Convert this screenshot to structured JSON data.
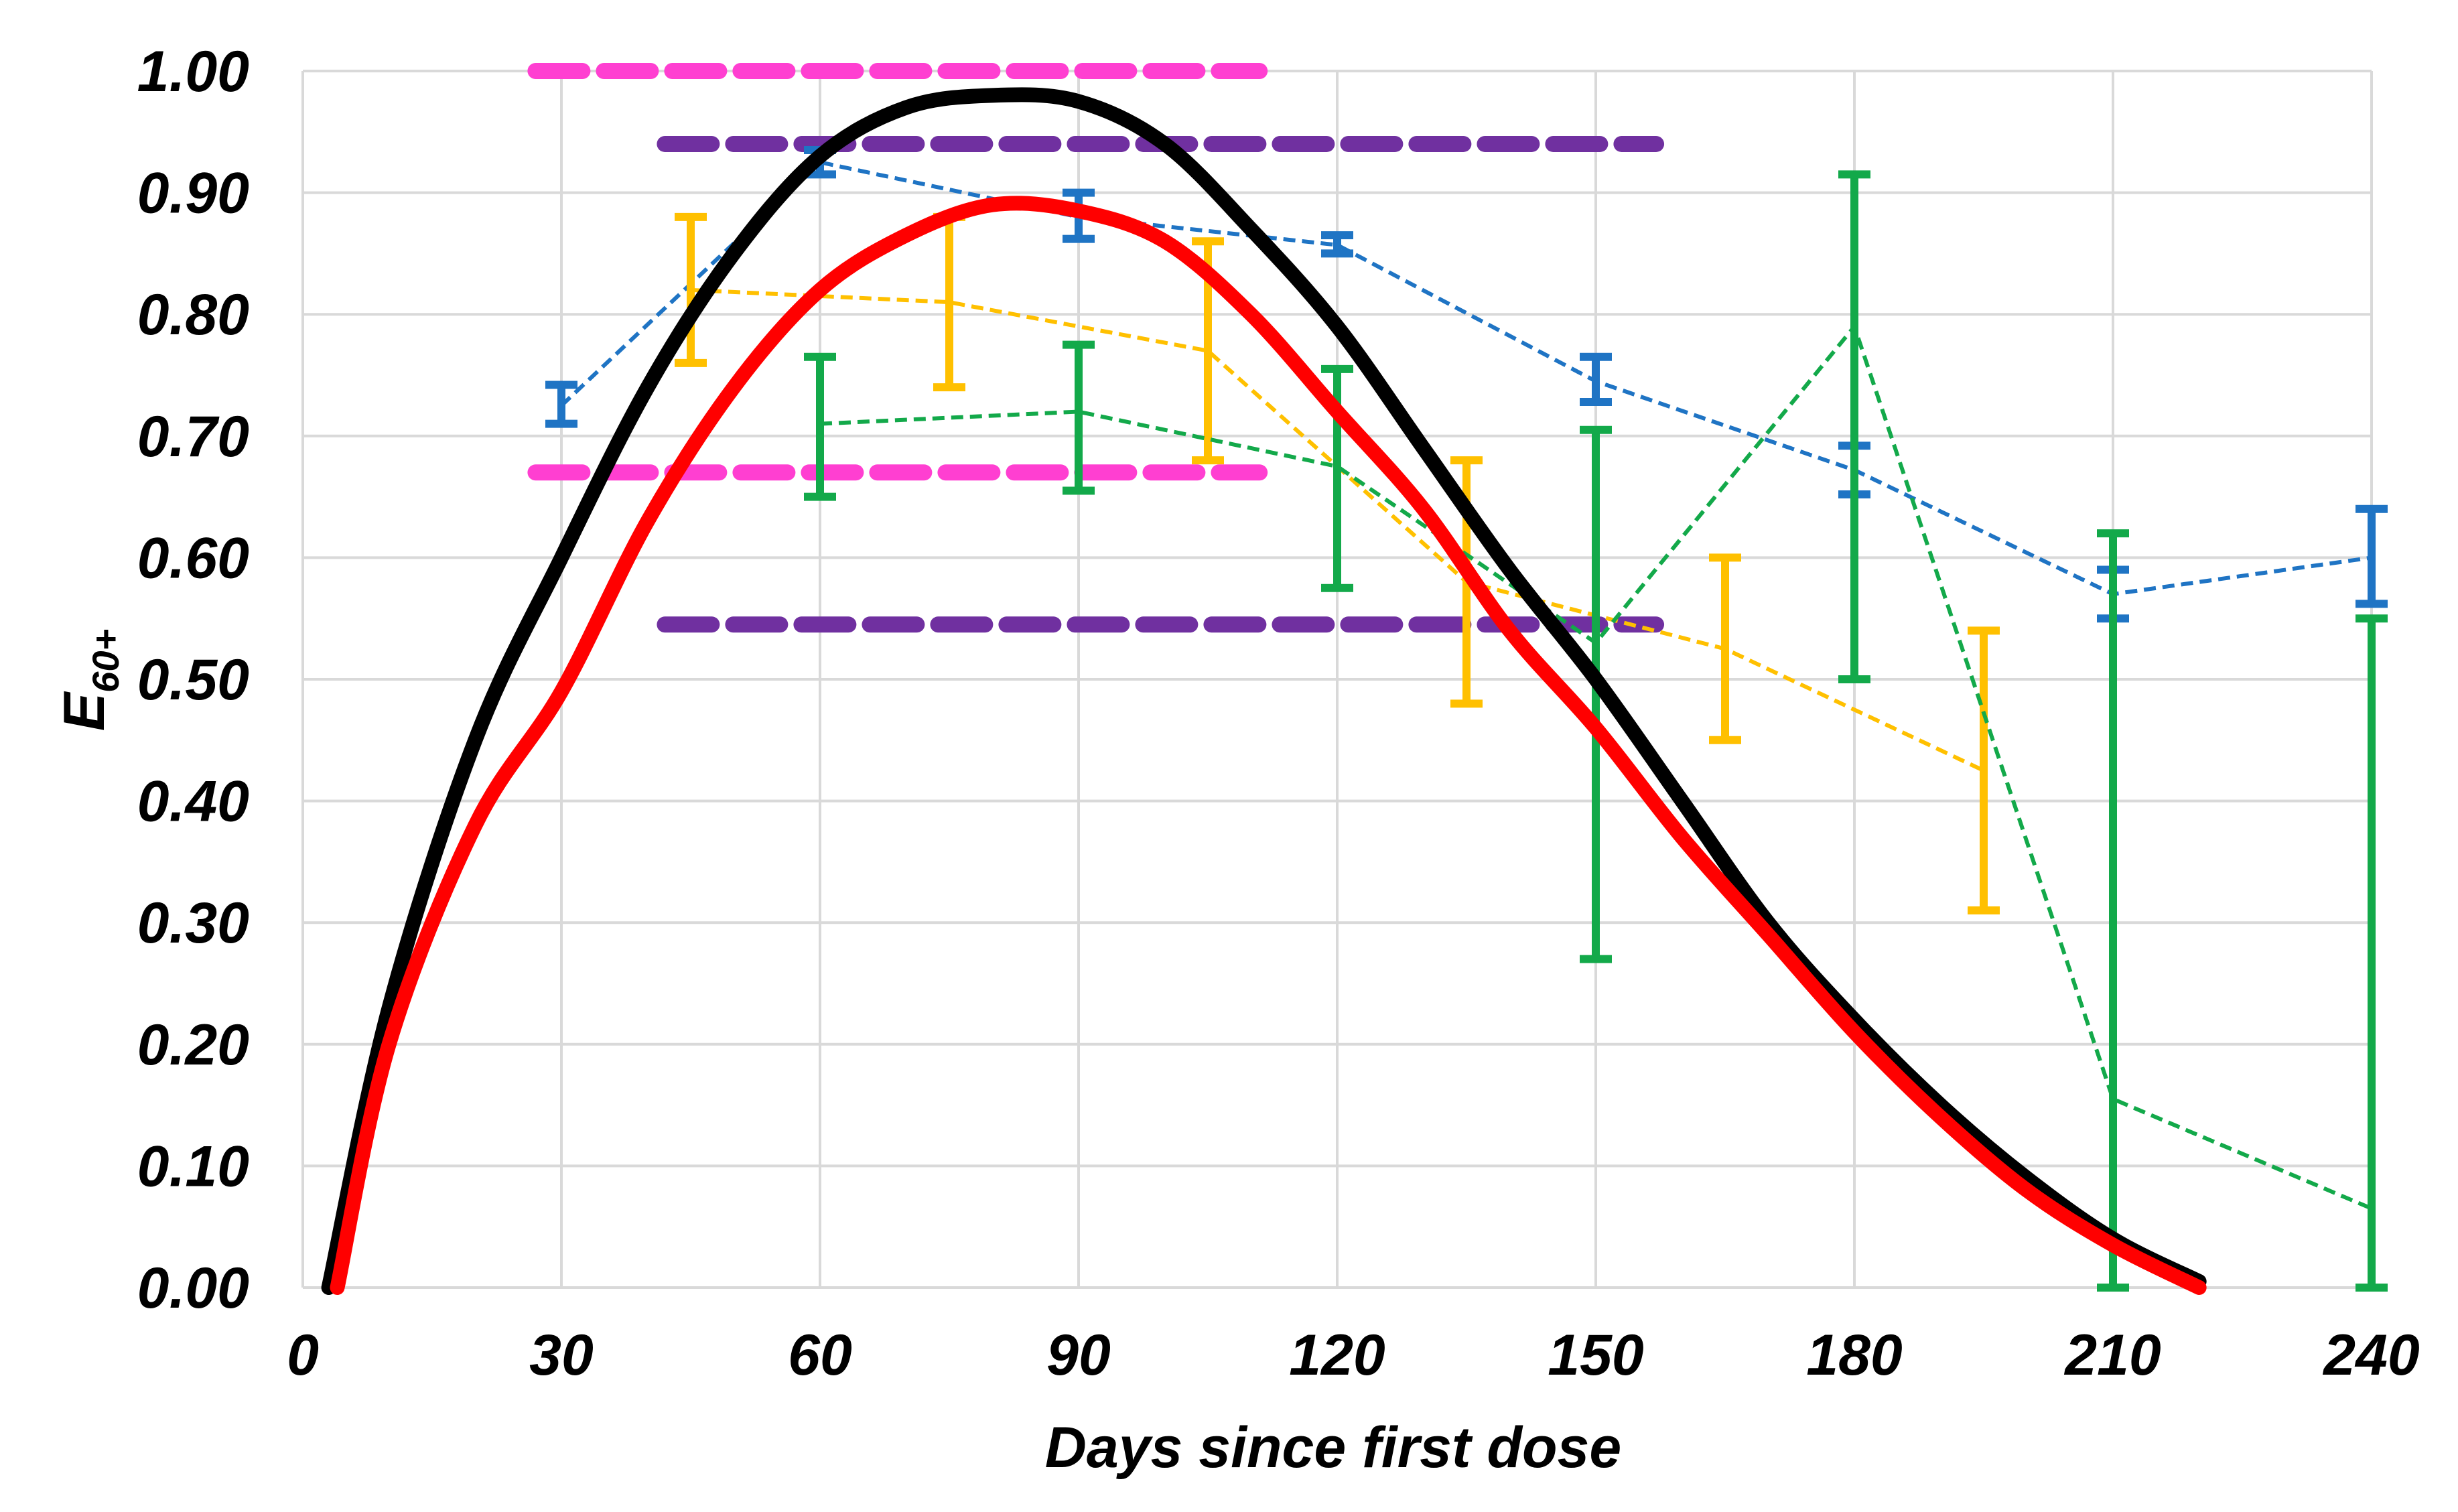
{
  "chart_data": {
    "type": "line",
    "title": "",
    "xlabel": "Days since first dose",
    "ylabel": "E",
    "ylabel_subscript": "60+",
    "xlim": [
      0,
      240
    ],
    "ylim": [
      0,
      1
    ],
    "x_ticks": [
      0,
      30,
      60,
      90,
      120,
      150,
      180,
      210,
      240
    ],
    "x_tick_labels": [
      "0",
      "30",
      "60",
      "90",
      "120",
      "150",
      "180",
      "210",
      "240"
    ],
    "y_ticks": [
      0,
      0.1,
      0.2,
      0.3,
      0.4,
      0.5,
      0.6,
      0.7,
      0.8,
      0.9,
      1.0
    ],
    "y_tick_labels": [
      "0.00",
      "0.10",
      "0.20",
      "0.30",
      "0.40",
      "0.50",
      "0.60",
      "0.70",
      "0.80",
      "0.90",
      "1.00"
    ],
    "grid": true,
    "model_curves": [
      {
        "name": "black model curve",
        "color": "#000000",
        "points": [
          [
            3,
            0.0
          ],
          [
            10,
            0.23
          ],
          [
            20,
            0.45
          ],
          [
            30,
            0.6
          ],
          [
            40,
            0.74
          ],
          [
            50,
            0.85
          ],
          [
            60,
            0.93
          ],
          [
            70,
            0.97
          ],
          [
            80,
            0.98
          ],
          [
            90,
            0.975
          ],
          [
            100,
            0.94
          ],
          [
            110,
            0.87
          ],
          [
            120,
            0.79
          ],
          [
            130,
            0.69
          ],
          [
            140,
            0.59
          ],
          [
            150,
            0.5
          ],
          [
            160,
            0.4
          ],
          [
            170,
            0.3
          ],
          [
            180,
            0.22
          ],
          [
            190,
            0.15
          ],
          [
            200,
            0.09
          ],
          [
            210,
            0.04
          ],
          [
            220,
            0.005
          ]
        ]
      },
      {
        "name": "red model curve",
        "color": "#ff0000",
        "points": [
          [
            4,
            0.0
          ],
          [
            10,
            0.2
          ],
          [
            20,
            0.38
          ],
          [
            30,
            0.49
          ],
          [
            40,
            0.63
          ],
          [
            50,
            0.74
          ],
          [
            60,
            0.82
          ],
          [
            70,
            0.865
          ],
          [
            80,
            0.89
          ],
          [
            90,
            0.885
          ],
          [
            100,
            0.86
          ],
          [
            110,
            0.8
          ],
          [
            120,
            0.72
          ],
          [
            130,
            0.64
          ],
          [
            140,
            0.54
          ],
          [
            150,
            0.46
          ],
          [
            160,
            0.37
          ],
          [
            170,
            0.29
          ],
          [
            180,
            0.21
          ],
          [
            190,
            0.14
          ],
          [
            200,
            0.08
          ],
          [
            210,
            0.035
          ],
          [
            220,
            0.0
          ]
        ]
      }
    ],
    "series": [
      {
        "name": "blue",
        "color": "#1f74c4",
        "x": [
          30,
          60,
          90,
          120,
          150,
          180,
          210,
          240
        ],
        "y": [
          0.725,
          0.925,
          0.88,
          0.857,
          0.745,
          0.672,
          0.57,
          0.6
        ],
        "err_low": [
          0.71,
          0.915,
          0.862,
          0.85,
          0.728,
          0.652,
          0.55,
          0.562
        ],
        "err_high": [
          0.742,
          0.935,
          0.9,
          0.865,
          0.765,
          0.692,
          0.59,
          0.64
        ]
      },
      {
        "name": "orange",
        "color": "#ffc000",
        "x": [
          45,
          75,
          105,
          135,
          165,
          195
        ],
        "y": [
          0.82,
          0.81,
          0.77,
          0.58,
          0.525,
          0.425
        ],
        "err_low": [
          0.76,
          0.74,
          0.68,
          0.48,
          0.45,
          0.31
        ],
        "err_high": [
          0.88,
          0.88,
          0.86,
          0.68,
          0.6,
          0.54
        ]
      },
      {
        "name": "green",
        "color": "#13a94a",
        "x": [
          60,
          90,
          120,
          150,
          180,
          210,
          240
        ],
        "y": [
          0.71,
          0.72,
          0.675,
          0.53,
          0.79,
          0.155,
          0.065
        ],
        "err_low": [
          0.65,
          0.655,
          0.575,
          0.27,
          0.5,
          0.0,
          0.0
        ],
        "err_high": [
          0.765,
          0.775,
          0.755,
          0.705,
          0.915,
          0.62,
          0.55
        ]
      }
    ],
    "reference_lines": [
      {
        "name": "magenta upper",
        "color": "#ff3fd1",
        "y": 1.0,
        "x_start": 27,
        "x_end": 111
      },
      {
        "name": "magenta lower",
        "color": "#ff3fd1",
        "y": 0.67,
        "x_start": 27,
        "x_end": 111
      },
      {
        "name": "purple upper",
        "color": "#7030a0",
        "y": 0.94,
        "x_start": 42,
        "x_end": 157
      },
      {
        "name": "purple lower",
        "color": "#7030a0",
        "y": 0.545,
        "x_start": 42,
        "x_end": 157
      }
    ]
  }
}
